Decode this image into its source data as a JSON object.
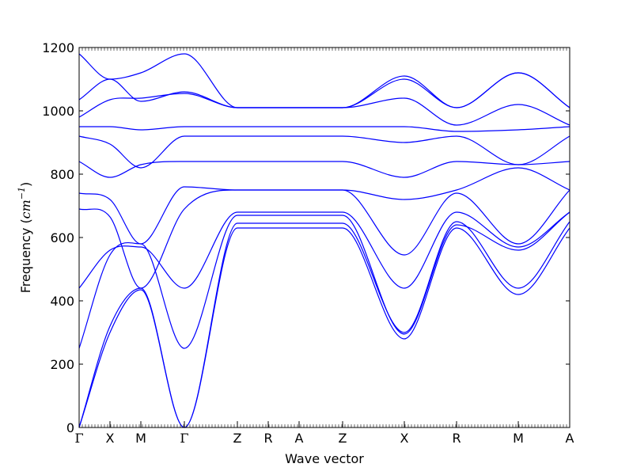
{
  "chart_data": {
    "type": "line",
    "title": "",
    "xlabel": "Wave vector",
    "ylabel_prefix": "Frequency (",
    "ylabel_unit": "cm",
    "ylabel_exponent": "−1",
    "ylabel_suffix": ")",
    "ylim": [
      0,
      1200
    ],
    "yticks": [
      0,
      200,
      400,
      600,
      800,
      1000,
      1200
    ],
    "xlim": [
      0,
      1
    ],
    "grid": false,
    "line_color": "#0000ff",
    "high_symmetry_points": [
      {
        "label": "Γ",
        "pos": 0.0
      },
      {
        "label": "X",
        "pos": 0.0629
      },
      {
        "label": "M",
        "pos": 0.1258
      },
      {
        "label": "Γ",
        "pos": 0.2145
      },
      {
        "label": "Z",
        "pos": 0.3226
      },
      {
        "label": "R",
        "pos": 0.3855
      },
      {
        "label": "A",
        "pos": 0.4484
      },
      {
        "label": "Z",
        "pos": 0.5371
      },
      {
        "label": "X",
        "pos": 0.6629
      },
      {
        "label": "R",
        "pos": 0.7694
      },
      {
        "label": "M",
        "pos": 0.8952
      },
      {
        "label": "A",
        "pos": 1.0
      }
    ],
    "series": [
      {
        "x": [
          0,
          0.0629,
          0.1258,
          0.2145,
          0.3226,
          0.3855,
          0.4484,
          0.5371,
          0.6629,
          0.7694,
          0.8952,
          1.0
        ],
        "y": [
          0,
          300,
          435,
          0,
          630,
          630,
          630,
          630,
          280,
          630,
          420,
          630
        ]
      },
      {
        "x": [
          0,
          0.0629,
          0.1258,
          0.2145,
          0.3226,
          0.3855,
          0.4484,
          0.5371,
          0.6629,
          0.7694,
          0.8952,
          1.0
        ],
        "y": [
          0,
          320,
          440,
          0,
          645,
          645,
          645,
          645,
          300,
          650,
          440,
          650
        ]
      },
      {
        "x": [
          0,
          0.0629,
          0.1258,
          0.2145,
          0.3226,
          0.3855,
          0.4484,
          0.5371,
          0.6629,
          0.7694,
          0.8952,
          1.0
        ],
        "y": [
          250,
          545,
          580,
          250,
          670,
          670,
          670,
          670,
          295,
          640,
          560,
          680
        ]
      },
      {
        "x": [
          0,
          0.0629,
          0.1258,
          0.2145,
          0.3226,
          0.3855,
          0.4484,
          0.5371,
          0.6629,
          0.7694,
          0.8952,
          1.0
        ],
        "y": [
          440,
          560,
          570,
          440,
          680,
          680,
          680,
          680,
          440,
          680,
          570,
          680
        ]
      },
      {
        "x": [
          0,
          0.0629,
          0.1258,
          0.2145,
          0.3226,
          0.3855,
          0.4484,
          0.5371,
          0.6629,
          0.7694,
          0.8952,
          1.0
        ],
        "y": [
          690,
          665,
          440,
          690,
          750,
          750,
          750,
          750,
          545,
          740,
          580,
          750
        ]
      },
      {
        "x": [
          0,
          0.0629,
          0.1258,
          0.2145,
          0.3226,
          0.3855,
          0.4484,
          0.5371,
          0.6629,
          0.7694,
          0.8952,
          1.0
        ],
        "y": [
          740,
          720,
          580,
          760,
          750,
          750,
          750,
          750,
          720,
          750,
          820,
          750
        ]
      },
      {
        "x": [
          0,
          0.0629,
          0.1258,
          0.2145,
          0.3226,
          0.3855,
          0.4484,
          0.5371,
          0.6629,
          0.7694,
          0.8952,
          1.0
        ],
        "y": [
          840,
          790,
          830,
          840,
          840,
          840,
          840,
          840,
          790,
          840,
          830,
          840
        ]
      },
      {
        "x": [
          0,
          0.0629,
          0.1258,
          0.2145,
          0.3226,
          0.3855,
          0.4484,
          0.5371,
          0.6629,
          0.7694,
          0.8952,
          1.0
        ],
        "y": [
          920,
          895,
          820,
          920,
          920,
          920,
          920,
          920,
          900,
          920,
          830,
          920
        ]
      },
      {
        "x": [
          0,
          0.0629,
          0.1258,
          0.2145,
          0.3226,
          0.3855,
          0.4484,
          0.5371,
          0.6629,
          0.7694,
          0.8952,
          1.0
        ],
        "y": [
          950,
          950,
          940,
          950,
          950,
          950,
          950,
          950,
          950,
          935,
          940,
          950
        ]
      },
      {
        "x": [
          0,
          0.0629,
          0.1258,
          0.2145,
          0.3226,
          0.3855,
          0.4484,
          0.5371,
          0.6629,
          0.7694,
          0.8952,
          1.0
        ],
        "y": [
          980,
          1035,
          1040,
          1055,
          1010,
          1010,
          1010,
          1010,
          1040,
          955,
          1020,
          955
        ]
      },
      {
        "x": [
          0,
          0.0629,
          0.1258,
          0.2145,
          0.3226,
          0.3855,
          0.4484,
          0.5371,
          0.6629,
          0.7694,
          0.8952,
          1.0
        ],
        "y": [
          1035,
          1100,
          1030,
          1060,
          1010,
          1010,
          1010,
          1010,
          1100,
          1010,
          1120,
          1010
        ]
      },
      {
        "x": [
          0,
          0.0629,
          0.1258,
          0.2145,
          0.3226,
          0.3855,
          0.4484,
          0.5371,
          0.6629,
          0.7694,
          0.8952,
          1.0
        ],
        "y": [
          1180,
          1100,
          1120,
          1180,
          1010,
          1010,
          1010,
          1010,
          1110,
          1010,
          1120,
          1010
        ]
      }
    ]
  }
}
